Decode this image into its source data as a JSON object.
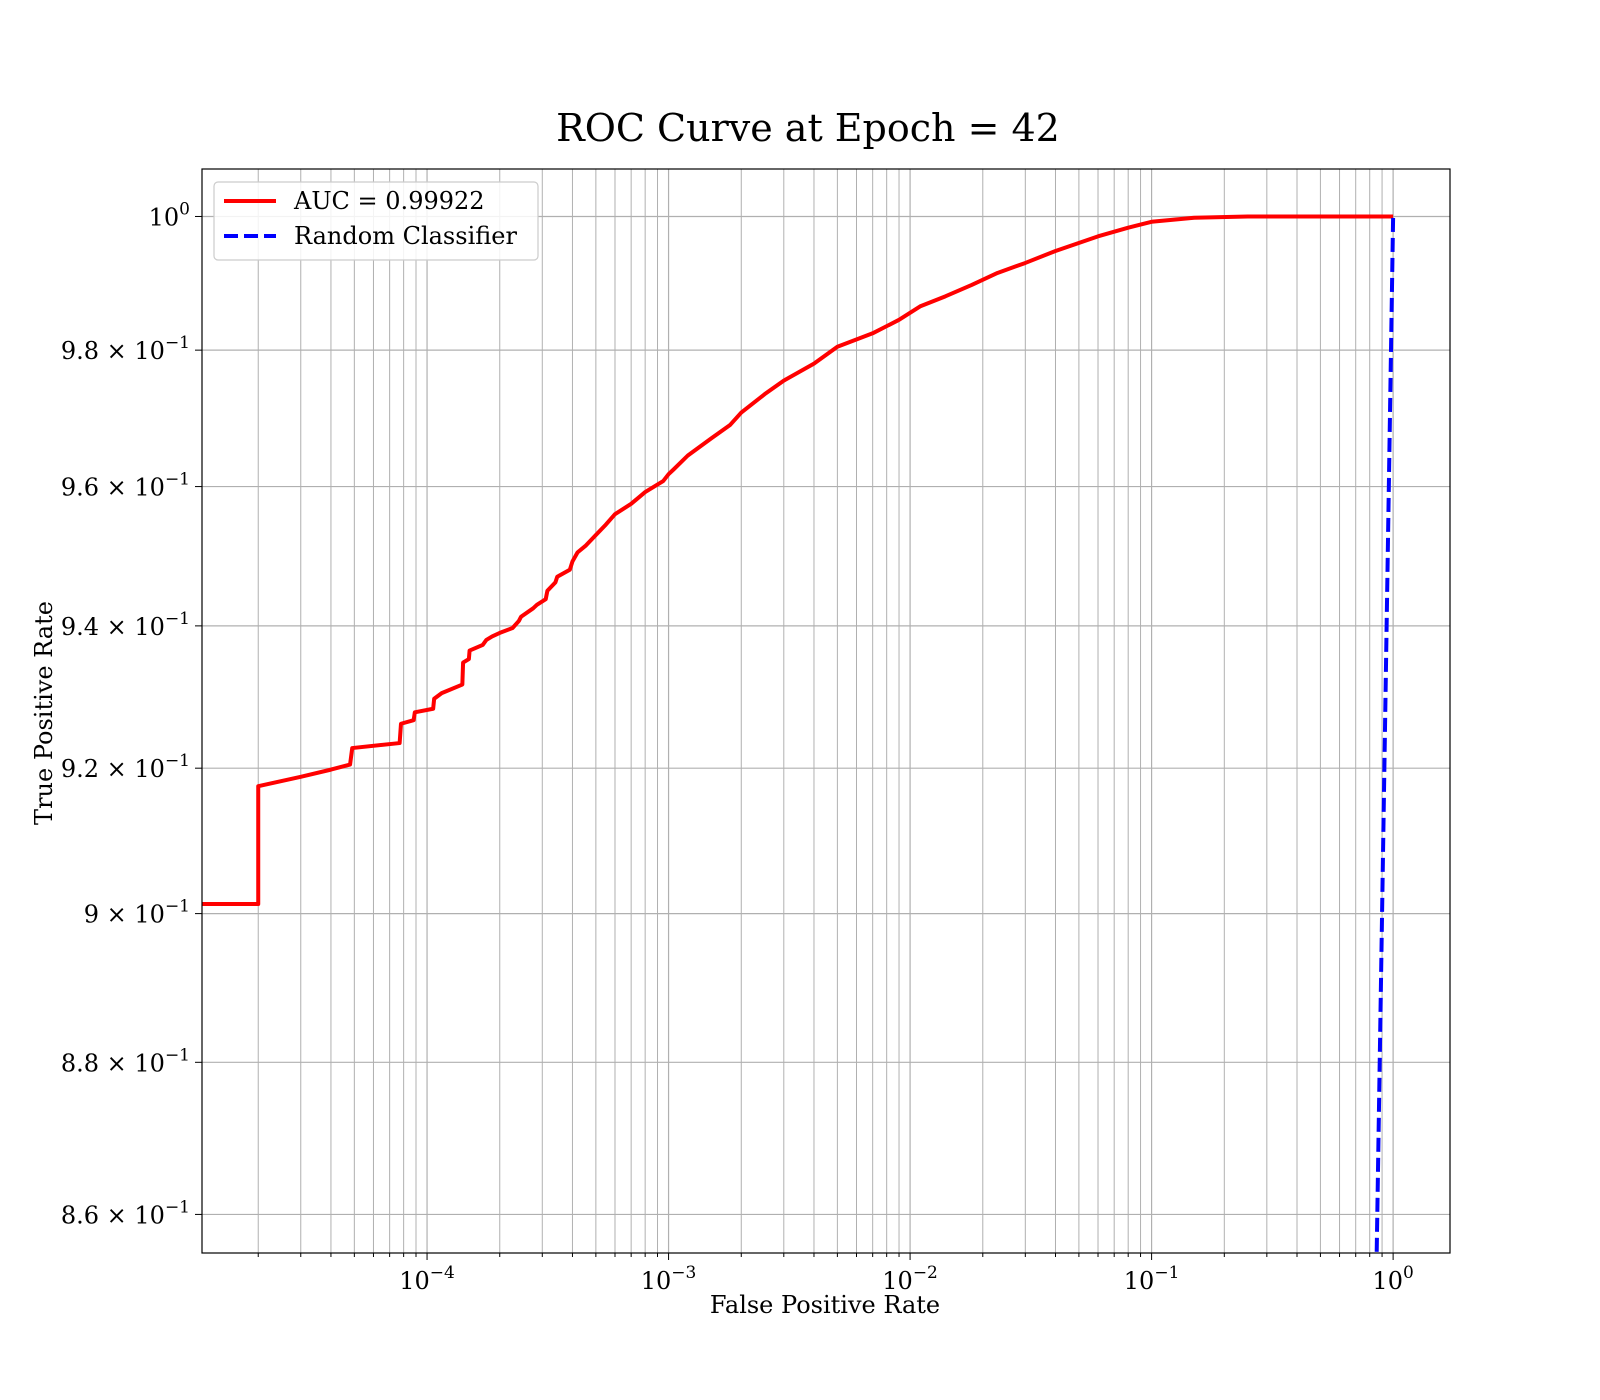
{
  "chart_data": {
    "type": "line",
    "title": "ROC Curve at Epoch = 42",
    "xlabel": "False Positive Rate",
    "ylabel": "True Positive Rate",
    "xscale": "log",
    "yscale": "log",
    "xlim": [
      1.17e-05,
      1.72
    ],
    "ylim": [
      0.855,
      1.0072
    ],
    "grid": true,
    "legend_position": "top-left",
    "x_ticks": [
      {
        "value": 0.0001,
        "base": "10",
        "exp": "−4"
      },
      {
        "value": 0.001,
        "base": "10",
        "exp": "−3"
      },
      {
        "value": 0.01,
        "base": "10",
        "exp": "−2"
      },
      {
        "value": 0.1,
        "base": "10",
        "exp": "−1"
      },
      {
        "value": 1,
        "base": "10",
        "exp": "0"
      }
    ],
    "y_ticks": [
      {
        "value": 1.0,
        "mant": "",
        "base": "10",
        "exp": "0"
      },
      {
        "value": 0.98,
        "mant": "9.8",
        "base": "10",
        "exp": "−1"
      },
      {
        "value": 0.96,
        "mant": "9.6",
        "base": "10",
        "exp": "−1"
      },
      {
        "value": 0.94,
        "mant": "9.4",
        "base": "10",
        "exp": "−1"
      },
      {
        "value": 0.92,
        "mant": "9.2",
        "base": "10",
        "exp": "−1"
      },
      {
        "value": 0.9,
        "mant": "9",
        "base": "10",
        "exp": "−1"
      },
      {
        "value": 0.88,
        "mant": "8.8",
        "base": "10",
        "exp": "−1"
      },
      {
        "value": 0.86,
        "mant": "8.6",
        "base": "10",
        "exp": "−1"
      }
    ],
    "series": [
      {
        "name": "AUC = 0.99922",
        "color": "#ff0000",
        "style": "solid",
        "x": [
          1.17e-05,
          2e-05,
          2e-05,
          3e-05,
          4e-05,
          4.8e-05,
          4.9e-05,
          7.7e-05,
          7.8e-05,
          8.8e-05,
          8.9e-05,
          0.000106,
          0.000107,
          0.000115,
          0.00014,
          0.000141,
          0.000149,
          0.00015,
          0.00017,
          0.000176,
          0.000186,
          0.0002,
          0.000226,
          0.00024,
          0.000245,
          0.000275,
          0.000285,
          0.00031,
          0.000315,
          0.00034,
          0.000346,
          0.00039,
          0.0004,
          0.00042,
          0.000455,
          0.0005,
          0.00055,
          0.0006,
          0.0007,
          0.0008,
          0.00095,
          0.001,
          0.00105,
          0.0012,
          0.0015,
          0.0018,
          0.002,
          0.0025,
          0.003,
          0.004,
          0.005,
          0.007,
          0.009,
          0.011,
          0.014,
          0.018,
          0.023,
          0.03,
          0.04,
          0.06,
          0.08,
          0.1,
          0.15,
          0.25,
          1.0
        ],
        "y": [
          0.9013,
          0.9013,
          0.9175,
          0.9188,
          0.9198,
          0.9205,
          0.9228,
          0.9235,
          0.9262,
          0.9267,
          0.9278,
          0.9283,
          0.9297,
          0.9305,
          0.9317,
          0.9348,
          0.9353,
          0.9365,
          0.9373,
          0.938,
          0.9385,
          0.939,
          0.9397,
          0.9407,
          0.9413,
          0.9425,
          0.943,
          0.9438,
          0.945,
          0.9462,
          0.947,
          0.948,
          0.9492,
          0.9505,
          0.9515,
          0.953,
          0.9545,
          0.956,
          0.9575,
          0.9592,
          0.9608,
          0.9618,
          0.9625,
          0.9645,
          0.967,
          0.969,
          0.9708,
          0.9735,
          0.9755,
          0.978,
          0.9805,
          0.9825,
          0.9845,
          0.9865,
          0.988,
          0.9897,
          0.9915,
          0.993,
          0.9948,
          0.997,
          0.9983,
          0.9992,
          0.9998,
          1.0,
          1.0
        ]
      },
      {
        "name": "Random Classifier",
        "color": "#0000ff",
        "style": "dashed",
        "x": [
          0.85,
          1.0
        ],
        "y": [
          0.85,
          1.0
        ]
      }
    ]
  }
}
